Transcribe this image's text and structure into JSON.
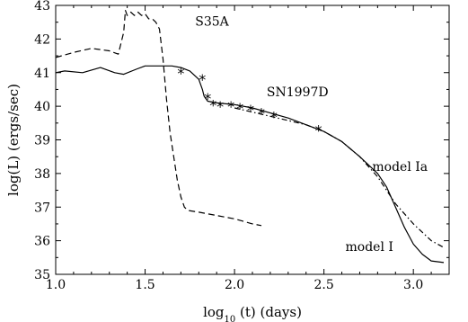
{
  "chart_data": {
    "type": "line",
    "xlabel": "log10 (t) (days)",
    "xlabel_parts": {
      "pre": "log",
      "sub": "10",
      "post": " (t) (days)"
    },
    "ylabel": "log(L) (ergs/sec)",
    "xlim": [
      1.0,
      3.2
    ],
    "ylim": [
      35,
      43
    ],
    "xticks": [
      1.0,
      1.5,
      2.0,
      2.5,
      3.0
    ],
    "xtick_labels": [
      "1.0",
      "1.5",
      "2.0",
      "2.5",
      "3.0"
    ],
    "yticks": [
      35,
      36,
      37,
      38,
      39,
      40,
      41,
      42,
      43
    ],
    "ytick_labels": [
      "35",
      "36",
      "37",
      "38",
      "39",
      "40",
      "41",
      "42",
      "43"
    ],
    "grid": false,
    "series": [
      {
        "label": "S35A",
        "style": "dashed",
        "x": [
          1.0,
          1.1,
          1.2,
          1.3,
          1.35,
          1.38,
          1.39,
          1.4,
          1.42,
          1.44,
          1.46,
          1.48,
          1.5,
          1.52,
          1.54,
          1.56,
          1.58,
          1.6,
          1.62,
          1.64,
          1.66,
          1.68,
          1.7,
          1.72,
          1.74,
          1.8,
          1.9,
          2.0,
          2.1,
          2.15
        ],
        "y": [
          41.45,
          41.6,
          41.72,
          41.65,
          41.55,
          42.2,
          42.85,
          42.7,
          42.8,
          42.7,
          42.8,
          42.7,
          42.75,
          42.6,
          42.6,
          42.5,
          42.3,
          41.4,
          40.2,
          39.2,
          38.5,
          37.8,
          37.3,
          37.0,
          36.9,
          36.85,
          36.75,
          36.65,
          36.5,
          36.45
        ]
      },
      {
        "label": "model Ia",
        "style": "dashdot",
        "x": [
          2.0,
          2.2,
          2.4,
          2.5,
          2.6,
          2.7,
          2.8,
          2.9,
          3.0,
          3.1,
          3.17
        ],
        "y": [
          39.95,
          39.7,
          39.45,
          39.25,
          38.95,
          38.5,
          37.9,
          37.1,
          36.5,
          36.0,
          35.8
        ]
      },
      {
        "label": "model I",
        "style": "solid",
        "x": [
          1.0,
          1.05,
          1.15,
          1.25,
          1.33,
          1.38,
          1.45,
          1.5,
          1.55,
          1.6,
          1.65,
          1.7,
          1.75,
          1.8,
          1.82,
          1.83,
          1.85,
          1.9,
          2.0,
          2.1,
          2.2,
          2.3,
          2.4,
          2.5,
          2.6,
          2.7,
          2.8,
          2.85,
          2.9,
          2.95,
          3.0,
          3.05,
          3.1,
          3.17
        ],
        "y": [
          41.0,
          41.05,
          41.0,
          41.15,
          41.0,
          40.95,
          41.1,
          41.2,
          41.2,
          41.2,
          41.2,
          41.15,
          41.05,
          40.8,
          40.5,
          40.3,
          40.15,
          40.1,
          40.05,
          39.95,
          39.8,
          39.65,
          39.45,
          39.25,
          38.95,
          38.5,
          38.0,
          37.6,
          37.0,
          36.4,
          35.9,
          35.6,
          35.4,
          35.35
        ]
      },
      {
        "label": "SN1997D",
        "style": "markers",
        "marker": "*",
        "x": [
          1.7,
          1.82,
          1.85,
          1.88,
          1.92,
          1.98,
          2.03,
          2.09,
          2.15,
          2.22,
          2.47
        ],
        "y": [
          41.0,
          40.8,
          40.25,
          40.05,
          40.0,
          40.0,
          39.95,
          39.9,
          39.8,
          39.7,
          39.3
        ]
      }
    ],
    "annotations": [
      {
        "text": "S35A",
        "x": 1.78,
        "y": 42.4
      },
      {
        "text": "SN1997D",
        "x": 2.18,
        "y": 40.3
      },
      {
        "text": "model Ia",
        "x": 2.77,
        "y": 38.08
      },
      {
        "text": "model I",
        "x": 2.62,
        "y": 35.7
      }
    ]
  }
}
